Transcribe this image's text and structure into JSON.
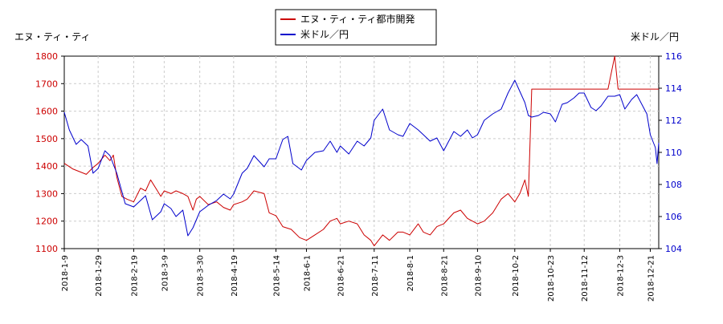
{
  "chart_data": {
    "type": "line",
    "x_ticks": [
      "2018-1-9",
      "2018-1-29",
      "2018-2-19",
      "2018-3-9",
      "2018-3-30",
      "2018-4-19",
      "2018-5-14",
      "2018-6-1",
      "2018-6-21",
      "2018-7-11",
      "2018-8-1",
      "2018-8-21",
      "2018-9-10",
      "2018-10-2",
      "2018-10-23",
      "2018-11-12",
      "2018-12-3",
      "2018-12-21"
    ],
    "left_axis": {
      "label": "エヌ・ティ・ティ",
      "ylim": [
        1100,
        1800
      ],
      "ticks": [
        1100,
        1200,
        1300,
        1400,
        1500,
        1600,
        1700,
        1800
      ],
      "color": "#cc0000"
    },
    "right_axis": {
      "label": "米ドル／円",
      "ylim": [
        104,
        116
      ],
      "ticks": [
        104,
        106,
        108,
        110,
        112,
        114,
        116
      ],
      "color": "#0000cc"
    },
    "grid": true,
    "legend_position": "top-center",
    "series": [
      {
        "name": "エヌ・ティ・ティ都市開発",
        "axis": "left",
        "color": "#cc0000",
        "points": [
          [
            "2018-1-9",
            1410
          ],
          [
            "2018-1-14",
            1390
          ],
          [
            "2018-1-18",
            1380
          ],
          [
            "2018-1-22",
            1370
          ],
          [
            "2018-1-26",
            1395
          ],
          [
            "2018-1-29",
            1410
          ],
          [
            "2018-2-2",
            1440
          ],
          [
            "2018-2-5",
            1420
          ],
          [
            "2018-2-7",
            1440
          ],
          [
            "2018-2-9",
            1360
          ],
          [
            "2018-2-12",
            1290
          ],
          [
            "2018-2-15",
            1280
          ],
          [
            "2018-2-19",
            1270
          ],
          [
            "2018-2-23",
            1320
          ],
          [
            "2018-2-26",
            1310
          ],
          [
            "2018-3-1",
            1350
          ],
          [
            "2018-3-5",
            1310
          ],
          [
            "2018-3-7",
            1290
          ],
          [
            "2018-3-9",
            1310
          ],
          [
            "2018-3-13",
            1300
          ],
          [
            "2018-3-16",
            1310
          ],
          [
            "2018-3-20",
            1300
          ],
          [
            "2018-3-23",
            1290
          ],
          [
            "2018-3-26",
            1240
          ],
          [
            "2018-3-28",
            1280
          ],
          [
            "2018-3-30",
            1290
          ],
          [
            "2018-4-4",
            1260
          ],
          [
            "2018-4-9",
            1270
          ],
          [
            "2018-4-13",
            1250
          ],
          [
            "2018-4-17",
            1240
          ],
          [
            "2018-4-19",
            1260
          ],
          [
            "2018-4-24",
            1270
          ],
          [
            "2018-4-27",
            1280
          ],
          [
            "2018-5-1",
            1310
          ],
          [
            "2018-5-7",
            1300
          ],
          [
            "2018-5-10",
            1230
          ],
          [
            "2018-5-14",
            1220
          ],
          [
            "2018-5-18",
            1180
          ],
          [
            "2018-5-23",
            1170
          ],
          [
            "2018-5-28",
            1140
          ],
          [
            "2018-6-1",
            1130
          ],
          [
            "2018-6-6",
            1150
          ],
          [
            "2018-6-11",
            1170
          ],
          [
            "2018-6-15",
            1200
          ],
          [
            "2018-6-19",
            1210
          ],
          [
            "2018-6-21",
            1190
          ],
          [
            "2018-6-26",
            1200
          ],
          [
            "2018-7-1",
            1190
          ],
          [
            "2018-7-5",
            1150
          ],
          [
            "2018-7-9",
            1130
          ],
          [
            "2018-7-11",
            1110
          ],
          [
            "2018-7-16",
            1150
          ],
          [
            "2018-7-20",
            1130
          ],
          [
            "2018-7-25",
            1160
          ],
          [
            "2018-7-28",
            1160
          ],
          [
            "2018-8-1",
            1150
          ],
          [
            "2018-8-6",
            1190
          ],
          [
            "2018-8-9",
            1160
          ],
          [
            "2018-8-13",
            1150
          ],
          [
            "2018-8-17",
            1180
          ],
          [
            "2018-8-21",
            1190
          ],
          [
            "2018-8-27",
            1230
          ],
          [
            "2018-8-31",
            1240
          ],
          [
            "2018-9-4",
            1210
          ],
          [
            "2018-9-7",
            1200
          ],
          [
            "2018-9-10",
            1190
          ],
          [
            "2018-9-14",
            1200
          ],
          [
            "2018-9-19",
            1230
          ],
          [
            "2018-9-24",
            1280
          ],
          [
            "2018-9-28",
            1300
          ],
          [
            "2018-10-2",
            1270
          ],
          [
            "2018-10-5",
            1300
          ],
          [
            "2018-10-8",
            1350
          ],
          [
            "2018-10-10",
            1290
          ],
          [
            "2018-10-12",
            1680
          ],
          [
            "2018-10-16",
            1680
          ],
          [
            "2018-10-23",
            1680
          ],
          [
            "2018-10-30",
            1680
          ],
          [
            "2018-11-6",
            1680
          ],
          [
            "2018-11-12",
            1680
          ],
          [
            "2018-11-19",
            1680
          ],
          [
            "2018-11-26",
            1680
          ],
          [
            "2018-11-30",
            1800
          ],
          [
            "2018-12-2",
            1680
          ],
          [
            "2018-12-3",
            1680
          ],
          [
            "2018-12-10",
            1680
          ],
          [
            "2018-12-17",
            1680
          ],
          [
            "2018-12-21",
            1680
          ],
          [
            "2018-12-26",
            1680
          ]
        ]
      },
      {
        "name": "米ドル／円",
        "axis": "right",
        "color": "#0000cc",
        "points": [
          [
            "2018-1-9",
            112.5
          ],
          [
            "2018-1-12",
            111.4
          ],
          [
            "2018-1-16",
            110.5
          ],
          [
            "2018-1-19",
            110.8
          ],
          [
            "2018-1-23",
            110.4
          ],
          [
            "2018-1-26",
            108.7
          ],
          [
            "2018-1-29",
            109.0
          ],
          [
            "2018-2-2",
            110.1
          ],
          [
            "2018-2-5",
            109.8
          ],
          [
            "2018-2-9",
            108.7
          ],
          [
            "2018-2-14",
            106.8
          ],
          [
            "2018-2-19",
            106.6
          ],
          [
            "2018-2-23",
            107.0
          ],
          [
            "2018-2-26",
            107.3
          ],
          [
            "2018-3-2",
            105.8
          ],
          [
            "2018-3-5",
            106.1
          ],
          [
            "2018-3-7",
            106.3
          ],
          [
            "2018-3-9",
            106.8
          ],
          [
            "2018-3-13",
            106.5
          ],
          [
            "2018-3-16",
            106.0
          ],
          [
            "2018-3-20",
            106.4
          ],
          [
            "2018-3-23",
            104.8
          ],
          [
            "2018-3-26",
            105.3
          ],
          [
            "2018-3-30",
            106.3
          ],
          [
            "2018-4-4",
            106.7
          ],
          [
            "2018-4-9",
            107.0
          ],
          [
            "2018-4-13",
            107.4
          ],
          [
            "2018-4-17",
            107.1
          ],
          [
            "2018-4-19",
            107.4
          ],
          [
            "2018-4-24",
            108.7
          ],
          [
            "2018-4-27",
            109.0
          ],
          [
            "2018-5-1",
            109.8
          ],
          [
            "2018-5-7",
            109.1
          ],
          [
            "2018-5-10",
            109.6
          ],
          [
            "2018-5-14",
            109.6
          ],
          [
            "2018-5-18",
            110.8
          ],
          [
            "2018-5-21",
            111.0
          ],
          [
            "2018-5-24",
            109.3
          ],
          [
            "2018-5-29",
            108.9
          ],
          [
            "2018-6-1",
            109.5
          ],
          [
            "2018-6-6",
            110.0
          ],
          [
            "2018-6-11",
            110.1
          ],
          [
            "2018-6-15",
            110.7
          ],
          [
            "2018-6-19",
            110.0
          ],
          [
            "2018-6-21",
            110.4
          ],
          [
            "2018-6-26",
            109.9
          ],
          [
            "2018-7-1",
            110.7
          ],
          [
            "2018-7-5",
            110.4
          ],
          [
            "2018-7-9",
            110.9
          ],
          [
            "2018-7-11",
            112.0
          ],
          [
            "2018-7-16",
            112.7
          ],
          [
            "2018-7-20",
            111.4
          ],
          [
            "2018-7-25",
            111.1
          ],
          [
            "2018-7-28",
            111.0
          ],
          [
            "2018-8-1",
            111.8
          ],
          [
            "2018-8-6",
            111.4
          ],
          [
            "2018-8-9",
            111.1
          ],
          [
            "2018-8-13",
            110.7
          ],
          [
            "2018-8-17",
            110.9
          ],
          [
            "2018-8-21",
            110.1
          ],
          [
            "2018-8-27",
            111.3
          ],
          [
            "2018-8-31",
            111.0
          ],
          [
            "2018-9-4",
            111.4
          ],
          [
            "2018-9-7",
            110.9
          ],
          [
            "2018-9-10",
            111.1
          ],
          [
            "2018-9-14",
            112.0
          ],
          [
            "2018-9-19",
            112.4
          ],
          [
            "2018-9-24",
            112.7
          ],
          [
            "2018-9-28",
            113.7
          ],
          [
            "2018-10-2",
            114.5
          ],
          [
            "2018-10-5",
            113.8
          ],
          [
            "2018-10-8",
            113.1
          ],
          [
            "2018-10-10",
            112.3
          ],
          [
            "2018-10-12",
            112.2
          ],
          [
            "2018-10-16",
            112.3
          ],
          [
            "2018-10-19",
            112.5
          ],
          [
            "2018-10-23",
            112.4
          ],
          [
            "2018-10-26",
            111.9
          ],
          [
            "2018-10-30",
            113.0
          ],
          [
            "2018-11-2",
            113.1
          ],
          [
            "2018-11-6",
            113.4
          ],
          [
            "2018-11-9",
            113.7
          ],
          [
            "2018-11-12",
            113.7
          ],
          [
            "2018-11-16",
            112.8
          ],
          [
            "2018-11-19",
            112.6
          ],
          [
            "2018-11-22",
            112.9
          ],
          [
            "2018-11-26",
            113.5
          ],
          [
            "2018-11-30",
            113.5
          ],
          [
            "2018-12-3",
            113.6
          ],
          [
            "2018-12-6",
            112.7
          ],
          [
            "2018-12-10",
            113.3
          ],
          [
            "2018-12-13",
            113.6
          ],
          [
            "2018-12-17",
            112.8
          ],
          [
            "2018-12-19",
            112.4
          ],
          [
            "2018-12-21",
            111.1
          ],
          [
            "2018-12-24",
            110.3
          ],
          [
            "2018-12-25",
            109.3
          ],
          [
            "2018-12-26",
            110.6
          ]
        ]
      }
    ]
  }
}
